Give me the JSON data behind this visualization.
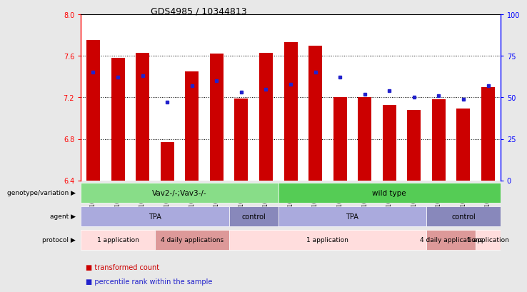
{
  "title": "GDS4985 / 10344813",
  "samples": [
    "GSM1003242",
    "GSM1003243",
    "GSM1003244",
    "GSM1003245",
    "GSM1003246",
    "GSM1003247",
    "GSM1003240",
    "GSM1003241",
    "GSM1003251",
    "GSM1003252",
    "GSM1003253",
    "GSM1003254",
    "GSM1003255",
    "GSM1003256",
    "GSM1003248",
    "GSM1003249",
    "GSM1003250"
  ],
  "red_values": [
    7.75,
    7.58,
    7.63,
    6.77,
    7.45,
    7.62,
    7.19,
    7.63,
    7.73,
    7.7,
    7.2,
    7.2,
    7.13,
    7.08,
    7.18,
    7.09,
    7.3
  ],
  "blue_values": [
    65,
    62,
    63,
    47,
    57,
    60,
    53,
    55,
    58,
    65,
    62,
    52,
    54,
    50,
    51,
    49,
    57
  ],
  "ylim_left": [
    6.4,
    8.0
  ],
  "ylim_right": [
    0,
    100
  ],
  "yticks_left": [
    6.4,
    6.8,
    7.2,
    7.6,
    8.0
  ],
  "yticks_right": [
    0,
    25,
    50,
    75,
    100
  ],
  "bar_color": "#cc0000",
  "dot_color": "#2222cc",
  "fig_bg": "#e8e8e8",
  "plot_bg": "white",
  "genotype_groups": [
    {
      "label": "Vav2-/-;Vav3-/-",
      "start": 0,
      "end": 8,
      "color": "#88dd88"
    },
    {
      "label": "wild type",
      "start": 8,
      "end": 17,
      "color": "#55cc55"
    }
  ],
  "agent_groups": [
    {
      "label": "TPA",
      "start": 0,
      "end": 6,
      "color": "#aaaadd"
    },
    {
      "label": "control",
      "start": 6,
      "end": 8,
      "color": "#8888bb"
    },
    {
      "label": "TPA",
      "start": 8,
      "end": 14,
      "color": "#aaaadd"
    },
    {
      "label": "control",
      "start": 14,
      "end": 17,
      "color": "#8888bb"
    }
  ],
  "protocol_groups": [
    {
      "label": "1 application",
      "start": 0,
      "end": 3,
      "color": "#ffdddd"
    },
    {
      "label": "4 daily applications",
      "start": 3,
      "end": 6,
      "color": "#dd9999"
    },
    {
      "label": "1 application",
      "start": 6,
      "end": 14,
      "color": "#ffdddd"
    },
    {
      "label": "4 daily applications",
      "start": 14,
      "end": 16,
      "color": "#dd9999"
    },
    {
      "label": "1 application",
      "start": 16,
      "end": 17,
      "color": "#ffdddd"
    }
  ],
  "row_labels": [
    "genotype/variation",
    "agent",
    "protocol"
  ],
  "legend_items": [
    {
      "color": "#cc0000",
      "label": "transformed count"
    },
    {
      "color": "#2222cc",
      "label": "percentile rank within the sample"
    }
  ],
  "grid_yticks": [
    6.8,
    7.2,
    7.6
  ],
  "n_samples": 17
}
